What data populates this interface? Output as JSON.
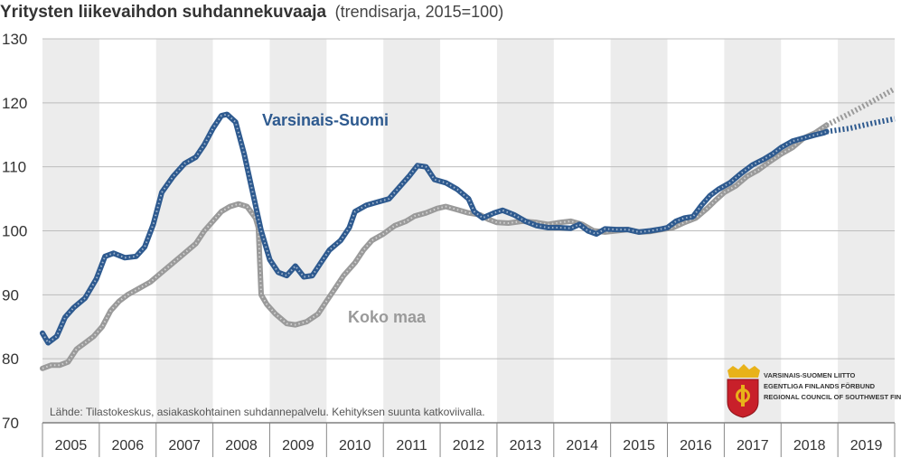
{
  "chart_data": {
    "type": "line",
    "title": "Yritysten liikevaihdon suhdannekuvaaja",
    "subtitle": "(trendisarja, 2015=100)",
    "xlabel": "",
    "ylabel": "",
    "xlim": [
      2005,
      2020
    ],
    "ylim": [
      70,
      130
    ],
    "y_ticks": [
      70,
      80,
      90,
      100,
      110,
      120,
      130
    ],
    "x_tick_labels": [
      "2005",
      "2006",
      "2007",
      "2008",
      "2009",
      "2010",
      "2011",
      "2012",
      "2013",
      "2014",
      "2015",
      "2016",
      "2017",
      "2018",
      "2019"
    ],
    "grid": "horizontal gridlines; alternating grey year bands",
    "series": [
      {
        "name": "Varsinais-Suomi",
        "color": "#2e5a8f",
        "points": [
          [
            2005.0,
            84
          ],
          [
            2005.1,
            82.5
          ],
          [
            2005.25,
            83.5
          ],
          [
            2005.4,
            86.5
          ],
          [
            2005.55,
            88
          ],
          [
            2005.75,
            89.5
          ],
          [
            2005.95,
            92.5
          ],
          [
            2006.1,
            96
          ],
          [
            2006.25,
            96.5
          ],
          [
            2006.45,
            95.8
          ],
          [
            2006.65,
            96
          ],
          [
            2006.8,
            97.5
          ],
          [
            2006.95,
            101
          ],
          [
            2007.1,
            106
          ],
          [
            2007.3,
            108.5
          ],
          [
            2007.5,
            110.5
          ],
          [
            2007.7,
            111.5
          ],
          [
            2007.85,
            113.5
          ],
          [
            2008.0,
            116
          ],
          [
            2008.15,
            118
          ],
          [
            2008.25,
            118.2
          ],
          [
            2008.4,
            117
          ],
          [
            2008.55,
            112
          ],
          [
            2008.7,
            106
          ],
          [
            2008.85,
            100
          ],
          [
            2009.0,
            95.5
          ],
          [
            2009.15,
            93.5
          ],
          [
            2009.3,
            93
          ],
          [
            2009.45,
            94.5
          ],
          [
            2009.6,
            92.8
          ],
          [
            2009.75,
            93
          ],
          [
            2009.9,
            95
          ],
          [
            2010.05,
            97
          ],
          [
            2010.25,
            98.5
          ],
          [
            2010.4,
            100.5
          ],
          [
            2010.5,
            103
          ],
          [
            2010.7,
            104
          ],
          [
            2010.9,
            104.5
          ],
          [
            2011.1,
            105
          ],
          [
            2011.3,
            107
          ],
          [
            2011.45,
            108.5
          ],
          [
            2011.6,
            110.2
          ],
          [
            2011.75,
            110
          ],
          [
            2011.9,
            108
          ],
          [
            2012.1,
            107.5
          ],
          [
            2012.3,
            106.5
          ],
          [
            2012.5,
            105
          ],
          [
            2012.6,
            103
          ],
          [
            2012.75,
            102
          ],
          [
            2012.95,
            102.8
          ],
          [
            2013.1,
            103.2
          ],
          [
            2013.3,
            102.5
          ],
          [
            2013.5,
            101.5
          ],
          [
            2013.7,
            100.8
          ],
          [
            2013.9,
            100.5
          ],
          [
            2014.1,
            100.5
          ],
          [
            2014.3,
            100.4
          ],
          [
            2014.45,
            101
          ],
          [
            2014.6,
            100
          ],
          [
            2014.75,
            99.5
          ],
          [
            2014.9,
            100.3
          ],
          [
            2015.1,
            100.2
          ],
          [
            2015.3,
            100.2
          ],
          [
            2015.5,
            99.8
          ],
          [
            2015.7,
            100
          ],
          [
            2015.9,
            100.3
          ],
          [
            2016.0,
            100.5
          ],
          [
            2016.15,
            101.5
          ],
          [
            2016.3,
            102
          ],
          [
            2016.45,
            102.2
          ],
          [
            2016.6,
            104
          ],
          [
            2016.75,
            105.5
          ],
          [
            2016.9,
            106.5
          ],
          [
            2017.1,
            107.5
          ],
          [
            2017.3,
            109
          ],
          [
            2017.5,
            110.3
          ],
          [
            2017.7,
            111.2
          ],
          [
            2017.85,
            112
          ],
          [
            2018.0,
            113
          ],
          [
            2018.2,
            114
          ],
          [
            2018.4,
            114.5
          ],
          [
            2018.6,
            115
          ],
          [
            2018.75,
            115.3
          ],
          [
            2018.8,
            115.5
          ]
        ],
        "forecast_points": [
          [
            2018.8,
            115.5
          ],
          [
            2019.2,
            116
          ],
          [
            2019.6,
            116.8
          ],
          [
            2020.0,
            117.5
          ]
        ]
      },
      {
        "name": "Koko maa",
        "color": "#9a9a9a",
        "points": [
          [
            2005.0,
            78.5
          ],
          [
            2005.15,
            79
          ],
          [
            2005.3,
            79
          ],
          [
            2005.45,
            79.5
          ],
          [
            2005.6,
            81.5
          ],
          [
            2005.75,
            82.5
          ],
          [
            2005.9,
            83.5
          ],
          [
            2006.05,
            85
          ],
          [
            2006.2,
            87.5
          ],
          [
            2006.35,
            89
          ],
          [
            2006.5,
            90
          ],
          [
            2006.7,
            91
          ],
          [
            2006.9,
            92
          ],
          [
            2007.1,
            93.5
          ],
          [
            2007.3,
            95
          ],
          [
            2007.5,
            96.5
          ],
          [
            2007.7,
            98
          ],
          [
            2007.85,
            100
          ],
          [
            2008.0,
            101.5
          ],
          [
            2008.15,
            103
          ],
          [
            2008.3,
            103.8
          ],
          [
            2008.45,
            104.2
          ],
          [
            2008.6,
            103.8
          ],
          [
            2008.75,
            102
          ],
          [
            2008.8,
            100.5
          ],
          [
            2008.85,
            90
          ],
          [
            2008.95,
            88.5
          ],
          [
            2009.1,
            87
          ],
          [
            2009.3,
            85.5
          ],
          [
            2009.45,
            85.3
          ],
          [
            2009.65,
            85.8
          ],
          [
            2009.85,
            87
          ],
          [
            2010.0,
            89
          ],
          [
            2010.15,
            91
          ],
          [
            2010.3,
            93
          ],
          [
            2010.5,
            95
          ],
          [
            2010.65,
            97
          ],
          [
            2010.8,
            98.5
          ],
          [
            2011.0,
            99.5
          ],
          [
            2011.2,
            100.8
          ],
          [
            2011.4,
            101.5
          ],
          [
            2011.55,
            102.3
          ],
          [
            2011.75,
            102.8
          ],
          [
            2011.95,
            103.5
          ],
          [
            2012.1,
            103.8
          ],
          [
            2012.3,
            103.3
          ],
          [
            2012.5,
            102.8
          ],
          [
            2012.7,
            102.5
          ],
          [
            2012.85,
            101.8
          ],
          [
            2013.0,
            101.3
          ],
          [
            2013.2,
            101.2
          ],
          [
            2013.45,
            101.5
          ],
          [
            2013.7,
            101.3
          ],
          [
            2013.9,
            101
          ],
          [
            2014.1,
            101.3
          ],
          [
            2014.3,
            101.5
          ],
          [
            2014.5,
            101
          ],
          [
            2014.7,
            100
          ],
          [
            2014.9,
            99.8
          ],
          [
            2015.1,
            100
          ],
          [
            2015.3,
            100.2
          ],
          [
            2015.5,
            99.8
          ],
          [
            2015.7,
            99.9
          ],
          [
            2015.9,
            100.2
          ],
          [
            2016.1,
            100.5
          ],
          [
            2016.3,
            101.3
          ],
          [
            2016.5,
            102
          ],
          [
            2016.7,
            103.5
          ],
          [
            2016.85,
            104.8
          ],
          [
            2017.0,
            106
          ],
          [
            2017.2,
            107
          ],
          [
            2017.4,
            108.5
          ],
          [
            2017.6,
            109.5
          ],
          [
            2017.8,
            110.8
          ],
          [
            2018.0,
            112
          ],
          [
            2018.2,
            113
          ],
          [
            2018.4,
            114.5
          ],
          [
            2018.6,
            115.3
          ],
          [
            2018.8,
            116.5
          ]
        ],
        "forecast_points": [
          [
            2018.8,
            116.5
          ],
          [
            2019.2,
            118.3
          ],
          [
            2019.6,
            120.2
          ],
          [
            2020.0,
            122.2
          ]
        ]
      }
    ],
    "annotations": [
      "Varsinais-Suomi",
      "Koko maa"
    ],
    "source_note": "Lähde: Tilastokeskus, asiakaskohtainen suhdannepalvelu. Kehityksen suunta katkoviivalla."
  },
  "logo": {
    "line1": "VARSINAIS-SUOMEN LIITTO",
    "line2": "EGENTLIGA FINLANDS FÖRBUND",
    "line3": "REGIONAL COUNCIL OF SOUTHWEST FINLAND",
    "shield_color": "#c8202a",
    "crown_color": "#e8b21a"
  }
}
